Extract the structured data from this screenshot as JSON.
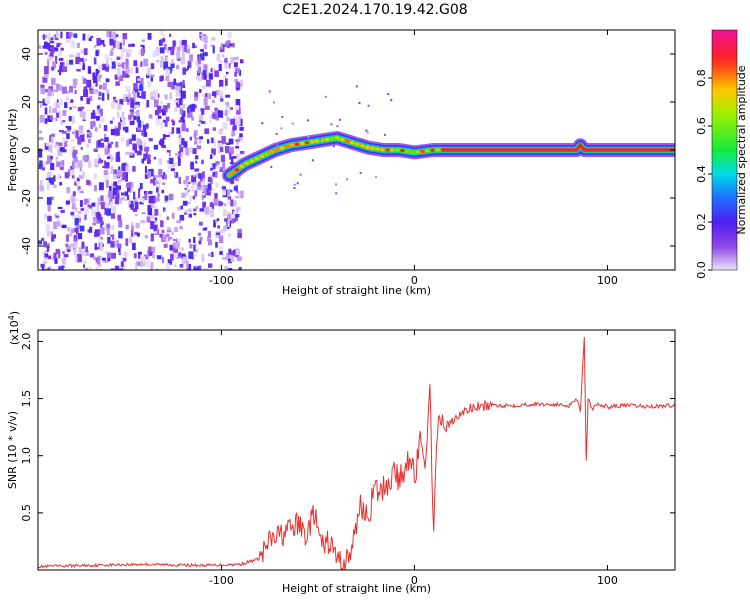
{
  "title": "C2E1.2024.170.19.42.G08",
  "chart_data": [
    {
      "type": "heatmap",
      "xlabel": "Height of straight line (km)",
      "ylabel": "Frequency (Hz)",
      "xlim": [
        -195,
        135
      ],
      "ylim": [
        -50,
        50
      ],
      "xticks": [
        -100,
        0,
        100
      ],
      "yticks": [
        -40,
        -20,
        0,
        20,
        40
      ],
      "grid": false,
      "colorbar": {
        "label": "Normalized spectral amplitude",
        "range": [
          0.0,
          1.0
        ],
        "ticks": [
          "0.0",
          "0.2",
          "0.4",
          "0.6",
          "0.8"
        ]
      },
      "ridge": {
        "x": [
          -95,
          -88,
          -80,
          -72,
          -64,
          -56,
          -48,
          -40,
          -32,
          -24,
          -16,
          -8,
          0,
          10,
          20,
          40,
          60,
          80,
          84,
          86,
          88,
          100,
          120,
          135
        ],
        "y": [
          -10,
          -6,
          -3,
          0,
          2,
          3,
          4,
          5,
          3,
          1,
          0,
          0,
          -1,
          0,
          0,
          0,
          0,
          0,
          0,
          2,
          0,
          0,
          0,
          0
        ]
      },
      "noise_region_x": [
        -195,
        -90
      ]
    },
    {
      "type": "line",
      "xlabel": "Height of straight line (km)",
      "ylabel": "SNR (10 * v/v)",
      "scale_label": "(x10",
      "scale_exp": "4",
      "xlim": [
        -195,
        135
      ],
      "ylim": [
        0,
        21000
      ],
      "xticks": [
        -100,
        0,
        100
      ],
      "yticks": [
        "0.5",
        "1.0",
        "1.5",
        "2.0"
      ],
      "ytick_values": [
        5000,
        10000,
        15000,
        20000
      ],
      "grid": false,
      "color": "#e8312f",
      "x": [
        -195,
        -170,
        -140,
        -110,
        -90,
        -80,
        -75,
        -70,
        -65,
        -60,
        -56,
        -52,
        -48,
        -44,
        -40,
        -36,
        -32,
        -28,
        -25,
        -22,
        -20,
        -18,
        -15,
        -12,
        -10,
        -8,
        -5,
        -2,
        0,
        3,
        5,
        8,
        10,
        12,
        14,
        16,
        20,
        25,
        30,
        35,
        40,
        50,
        60,
        70,
        80,
        84,
        86,
        88,
        89,
        90,
        92,
        95,
        100,
        110,
        120,
        135
      ],
      "y": [
        300,
        400,
        500,
        400,
        500,
        1000,
        2500,
        3000,
        3500,
        4000,
        3000,
        5000,
        2000,
        2500,
        1000,
        600,
        2000,
        6000,
        4500,
        6000,
        7000,
        6500,
        7500,
        8000,
        9000,
        7500,
        9000,
        10500,
        8000,
        11000,
        9000,
        15000,
        4000,
        12000,
        13000,
        12500,
        13000,
        13800,
        14200,
        14300,
        14400,
        14400,
        14500,
        14500,
        14400,
        15000,
        14000,
        20500,
        9500,
        15000,
        14000,
        14500,
        14300,
        14400,
        14300,
        14400
      ]
    }
  ]
}
